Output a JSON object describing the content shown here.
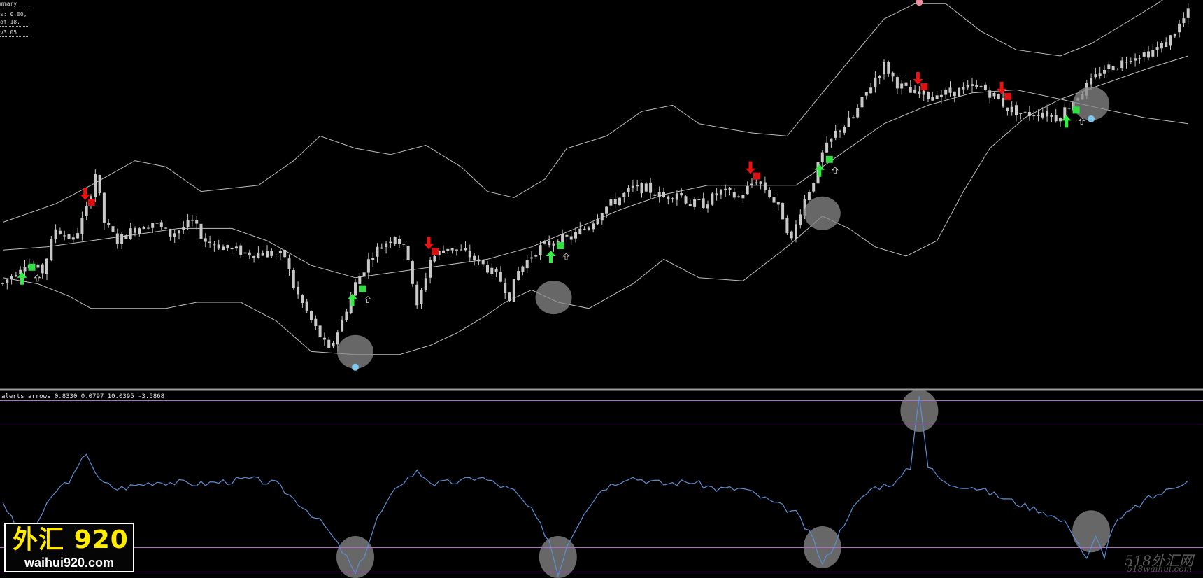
{
  "info": {
    "lines": [
      "mmary",
      "s: 0.00,",
      "of 18,",
      "v3.05"
    ]
  },
  "subwindow": {
    "label": "alerts   arrows 0.8330 0.0797 10.0395 -3.5868"
  },
  "logo": {
    "cn": "外汇 920",
    "en": "waihui920.com"
  },
  "watermark": {
    "top": "518外汇网",
    "bottom": "518waihui.com"
  },
  "colors": {
    "background": "#000000",
    "candle_body": "#c8c8c8",
    "band_line": "#bdbdbd",
    "buy_arrow": "#33ee44",
    "sell_arrow": "#ee1111",
    "buy_square": "#33dd44",
    "sell_square": "#dd1111",
    "indicator_line": "#5b8fd6",
    "level_line": "#b06cc8",
    "highlight_circle": "#8a8a8a",
    "dot_blue": "#7ec8ee",
    "dot_pink": "#f08ca0"
  },
  "chart_data": [
    {
      "type": "candlestick",
      "panel": "main",
      "price_range": [
        0,
        100
      ],
      "anchors": [
        [
          0,
          26
        ],
        [
          5,
          33
        ],
        [
          9,
          30
        ],
        [
          12,
          44
        ],
        [
          16,
          40
        ],
        [
          19,
          50
        ],
        [
          21,
          62
        ],
        [
          23,
          46
        ],
        [
          26,
          40
        ],
        [
          30,
          44
        ],
        [
          34,
          46
        ],
        [
          38,
          42
        ],
        [
          43,
          46
        ],
        [
          46,
          40
        ],
        [
          50,
          38
        ],
        [
          55,
          36
        ],
        [
          60,
          36
        ],
        [
          64,
          35
        ],
        [
          66,
          25
        ],
        [
          70,
          14
        ],
        [
          74,
          4
        ],
        [
          77,
          14
        ],
        [
          80,
          26
        ],
        [
          84,
          36
        ],
        [
          89,
          42
        ],
        [
          92,
          35
        ],
        [
          94,
          18
        ],
        [
          97,
          34
        ],
        [
          101,
          38
        ],
        [
          105,
          36
        ],
        [
          108,
          33
        ],
        [
          110,
          31
        ],
        [
          113,
          27
        ],
        [
          115,
          22
        ],
        [
          117,
          30
        ],
        [
          121,
          37
        ],
        [
          125,
          40
        ],
        [
          129,
          41
        ],
        [
          133,
          45
        ],
        [
          136,
          50
        ],
        [
          140,
          54
        ],
        [
          143,
          57
        ],
        [
          146,
          57
        ],
        [
          150,
          54
        ],
        [
          153,
          56
        ],
        [
          156,
          52
        ],
        [
          159,
          52
        ],
        [
          163,
          56
        ],
        [
          167,
          54
        ],
        [
          171,
          60
        ],
        [
          174,
          55
        ],
        [
          177,
          48
        ],
        [
          179,
          40
        ],
        [
          181,
          50
        ],
        [
          184,
          60
        ],
        [
          186,
          68
        ],
        [
          189,
          75
        ],
        [
          193,
          80
        ],
        [
          196,
          88
        ],
        [
          198,
          93
        ],
        [
          200,
          97
        ],
        [
          203,
          91
        ],
        [
          206,
          88
        ],
        [
          210,
          87
        ],
        [
          214,
          88
        ],
        [
          218,
          89
        ],
        [
          222,
          90
        ],
        [
          225,
          87
        ],
        [
          228,
          83
        ],
        [
          232,
          81
        ],
        [
          236,
          82
        ],
        [
          239,
          80
        ],
        [
          242,
          84
        ],
        [
          246,
          90
        ],
        [
          250,
          96
        ],
        [
          253,
          97
        ],
        [
          256,
          100
        ],
        [
          260,
          101
        ],
        [
          264,
          104
        ],
        [
          267,
          110
        ],
        [
          269,
          114
        ]
      ],
      "bands": {
        "upper": [
          [
            0,
            46
          ],
          [
            12,
            52
          ],
          [
            20,
            58
          ],
          [
            30,
            66
          ],
          [
            37,
            64
          ],
          [
            45,
            56
          ],
          [
            58,
            58
          ],
          [
            66,
            66
          ],
          [
            72,
            74
          ],
          [
            80,
            70
          ],
          [
            88,
            68
          ],
          [
            96,
            71
          ],
          [
            104,
            64
          ],
          [
            110,
            56
          ],
          [
            116,
            54
          ],
          [
            123,
            60
          ],
          [
            128,
            70
          ],
          [
            137,
            74
          ],
          [
            145,
            82
          ],
          [
            152,
            84
          ],
          [
            158,
            78
          ],
          [
            170,
            75
          ],
          [
            178,
            74
          ],
          [
            186,
            88
          ],
          [
            193,
            100
          ],
          [
            200,
            112
          ],
          [
            207,
            117
          ],
          [
            214,
            117
          ],
          [
            222,
            108
          ],
          [
            230,
            102
          ],
          [
            240,
            100
          ],
          [
            247,
            104
          ],
          [
            254,
            110
          ],
          [
            262,
            117
          ],
          [
            269,
            124
          ]
        ],
        "middle": [
          [
            0,
            37
          ],
          [
            10,
            38
          ],
          [
            20,
            40
          ],
          [
            30,
            42
          ],
          [
            40,
            44
          ],
          [
            52,
            44
          ],
          [
            60,
            40
          ],
          [
            70,
            32
          ],
          [
            80,
            28
          ],
          [
            90,
            30
          ],
          [
            100,
            32
          ],
          [
            110,
            34
          ],
          [
            120,
            38
          ],
          [
            130,
            44
          ],
          [
            140,
            50
          ],
          [
            150,
            55
          ],
          [
            160,
            58
          ],
          [
            170,
            58
          ],
          [
            180,
            58
          ],
          [
            190,
            68
          ],
          [
            200,
            78
          ],
          [
            210,
            84
          ],
          [
            220,
            88
          ],
          [
            230,
            89
          ],
          [
            240,
            86
          ],
          [
            250,
            91
          ],
          [
            260,
            96
          ],
          [
            269,
            100
          ]
        ],
        "lower": [
          [
            0,
            28
          ],
          [
            8,
            26
          ],
          [
            15,
            22
          ],
          [
            20,
            18
          ],
          [
            30,
            18
          ],
          [
            37,
            18
          ],
          [
            44,
            20
          ],
          [
            54,
            20
          ],
          [
            62,
            14
          ],
          [
            70,
            4
          ],
          [
            80,
            3
          ],
          [
            90,
            3
          ],
          [
            97,
            6
          ],
          [
            103,
            10
          ],
          [
            110,
            16
          ],
          [
            114,
            20
          ],
          [
            120,
            24
          ],
          [
            126,
            20
          ],
          [
            133,
            18
          ],
          [
            143,
            26
          ],
          [
            150,
            34
          ],
          [
            158,
            28
          ],
          [
            168,
            27
          ],
          [
            178,
            38
          ],
          [
            186,
            48
          ],
          [
            192,
            44
          ],
          [
            198,
            38
          ],
          [
            205,
            35
          ],
          [
            212,
            40
          ],
          [
            218,
            56
          ],
          [
            224,
            70
          ],
          [
            232,
            80
          ],
          [
            240,
            86
          ],
          [
            249,
            83
          ],
          [
            259,
            80
          ],
          [
            269,
            78
          ]
        ]
      },
      "signals": [
        {
          "bar": 5,
          "kind": "buy"
        },
        {
          "bar": 19,
          "kind": "sell"
        },
        {
          "bar": 80,
          "kind": "buy"
        },
        {
          "bar": 97,
          "kind": "sell"
        },
        {
          "bar": 125,
          "kind": "buy"
        },
        {
          "bar": 170,
          "kind": "sell"
        },
        {
          "bar": 186,
          "kind": "buy"
        },
        {
          "bar": 208,
          "kind": "sell"
        },
        {
          "bar": 227,
          "kind": "sell"
        },
        {
          "bar": 242,
          "kind": "buy"
        }
      ],
      "highlight_circles_bars": [
        80,
        125,
        186,
        247
      ]
    },
    {
      "type": "line",
      "panel": "oscillator",
      "levels": [
        -3.5,
        -2.5,
        2.5,
        3.5
      ],
      "series": [
        {
          "points": [
            [
              0,
              -0.6
            ],
            [
              5,
              -2.4
            ],
            [
              8,
              -1.4
            ],
            [
              12,
              -0.2
            ],
            [
              16,
              0.4
            ],
            [
              19,
              1.4
            ],
            [
              22,
              0.2
            ],
            [
              26,
              -0.1
            ],
            [
              35,
              0.2
            ],
            [
              45,
              0.1
            ],
            [
              56,
              0.3
            ],
            [
              62,
              0.1
            ],
            [
              68,
              -0.8
            ],
            [
              73,
              -1.6
            ],
            [
              78,
              -2.9
            ],
            [
              80,
              -3.6
            ],
            [
              82,
              -2.8
            ],
            [
              85,
              -1.3
            ],
            [
              90,
              0.1
            ],
            [
              94,
              0.6
            ],
            [
              98,
              0.1
            ],
            [
              104,
              0.2
            ],
            [
              108,
              0.4
            ],
            [
              112,
              0.1
            ],
            [
              116,
              -0.2
            ],
            [
              120,
              -1.0
            ],
            [
              124,
              -2.2
            ],
            [
              126,
              -3.6
            ],
            [
              128,
              -2.4
            ],
            [
              132,
              -1.0
            ],
            [
              136,
              -0.1
            ],
            [
              142,
              0.4
            ],
            [
              150,
              0.1
            ],
            [
              156,
              0.2
            ],
            [
              162,
              -0.1
            ],
            [
              168,
              -0.1
            ],
            [
              174,
              -0.6
            ],
            [
              180,
              -1.1
            ],
            [
              184,
              -2.2
            ],
            [
              186,
              -3.2
            ],
            [
              188,
              -2.6
            ],
            [
              192,
              -1.1
            ],
            [
              197,
              -0.1
            ],
            [
              203,
              0.2
            ],
            [
              206,
              0.8
            ],
            [
              208,
              3.8
            ],
            [
              210,
              0.8
            ],
            [
              214,
              0.1
            ],
            [
              220,
              0.0
            ],
            [
              226,
              -0.4
            ],
            [
              232,
              -0.8
            ],
            [
              236,
              -1.0
            ],
            [
              240,
              -1.4
            ],
            [
              242,
              -1.6
            ],
            [
              244,
              -2.3
            ],
            [
              246,
              -3.0
            ],
            [
              248,
              -2.1
            ],
            [
              250,
              -2.8
            ],
            [
              252,
              -1.6
            ],
            [
              256,
              -1.0
            ],
            [
              260,
              -0.5
            ],
            [
              264,
              -0.2
            ],
            [
              269,
              0.3
            ]
          ]
        }
      ],
      "highlight_circles_bars": [
        80,
        126,
        186,
        208,
        247
      ]
    }
  ]
}
